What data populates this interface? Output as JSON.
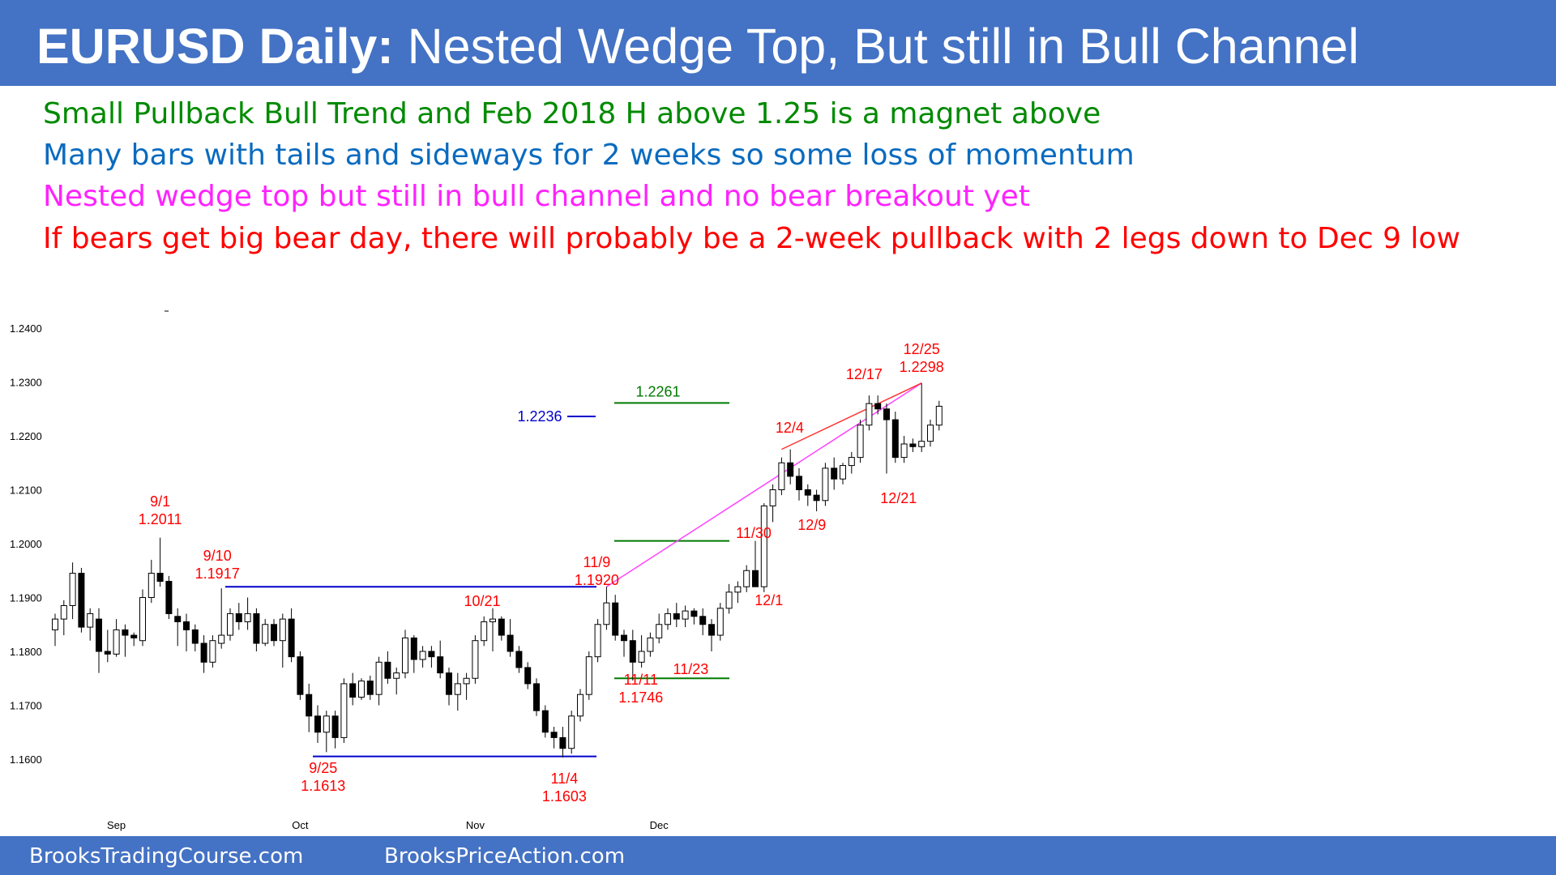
{
  "header": {
    "title_bold": "EURUSD Daily:",
    "title_rest": " Nested Wedge Top, But still in Bull Channel"
  },
  "notes": [
    {
      "text": "Small Pullback Bull Trend and Feb 2018 H above 1.25 is a magnet above",
      "color": "#008a00"
    },
    {
      "text": "Many bars with tails and sideways for 2 weeks so some loss of momentum",
      "color": "#0a6bbf"
    },
    {
      "text": "Nested wedge top but still in bull channel and no bear breakout yet",
      "color": "#ff22ff"
    },
    {
      "text": "If bears get big bear day, there will probably be a 2-week pullback with 2 legs down to Dec 9 low",
      "color": "#ff0000"
    }
  ],
  "footer": {
    "left": "BrooksTradingCourse.com",
    "right": "BrooksPriceAction.com"
  },
  "colors": {
    "bar_fill": "#4472c4",
    "bull_candle": "#ffffff",
    "bear_candle": "#000000",
    "annot_red": "#ff0000",
    "annot_blue": "#0000cc",
    "annot_green": "#007a00",
    "wedge_pink": "#ff44ff"
  },
  "chart_data": {
    "type": "candlestick",
    "title": "EURUSD Daily",
    "ylim": [
      1.158,
      1.24
    ],
    "y_ticks": [
      "1.2400",
      "1.2300",
      "1.2200",
      "1.2100",
      "1.2000",
      "1.1900",
      "1.1800",
      "1.1700",
      "1.1600"
    ],
    "x_month_labels": [
      {
        "label": "Sep",
        "index": 7
      },
      {
        "label": "Oct",
        "index": 28
      },
      {
        "label": "Nov",
        "index": 48
      },
      {
        "label": "Dec",
        "index": 69
      }
    ],
    "candles_ohlc": [
      [
        1.184,
        1.187,
        1.181,
        1.186
      ],
      [
        1.186,
        1.1895,
        1.183,
        1.1885
      ],
      [
        1.1885,
        1.1965,
        1.186,
        1.1945
      ],
      [
        1.1945,
        1.1955,
        1.1835,
        1.1845
      ],
      [
        1.1845,
        1.188,
        1.182,
        1.187
      ],
      [
        1.186,
        1.188,
        1.176,
        1.18
      ],
      [
        1.18,
        1.184,
        1.178,
        1.1795
      ],
      [
        1.1795,
        1.186,
        1.179,
        1.184
      ],
      [
        1.184,
        1.185,
        1.179,
        1.183
      ],
      [
        1.183,
        1.1835,
        1.181,
        1.1825
      ],
      [
        1.182,
        1.1915,
        1.181,
        1.19
      ],
      [
        1.19,
        1.197,
        1.189,
        1.1945
      ],
      [
        1.1945,
        1.2011,
        1.192,
        1.193
      ],
      [
        1.193,
        1.194,
        1.186,
        1.187
      ],
      [
        1.1865,
        1.188,
        1.181,
        1.1855
      ],
      [
        1.1855,
        1.187,
        1.18,
        1.184
      ],
      [
        1.184,
        1.185,
        1.18,
        1.1815
      ],
      [
        1.1815,
        1.183,
        1.176,
        1.178
      ],
      [
        1.178,
        1.183,
        1.177,
        1.182
      ],
      [
        1.1815,
        1.1917,
        1.1805,
        1.183
      ],
      [
        1.183,
        1.188,
        1.182,
        1.187
      ],
      [
        1.187,
        1.189,
        1.184,
        1.1855
      ],
      [
        1.1855,
        1.19,
        1.184,
        1.187
      ],
      [
        1.187,
        1.188,
        1.18,
        1.1815
      ],
      [
        1.1815,
        1.186,
        1.181,
        1.185
      ],
      [
        1.185,
        1.186,
        1.181,
        1.182
      ],
      [
        1.182,
        1.187,
        1.177,
        1.186
      ],
      [
        1.186,
        1.188,
        1.178,
        1.179
      ],
      [
        1.179,
        1.18,
        1.171,
        1.172
      ],
      [
        1.172,
        1.174,
        1.165,
        1.168
      ],
      [
        1.168,
        1.17,
        1.163,
        1.165
      ],
      [
        1.165,
        1.169,
        1.1613,
        1.168
      ],
      [
        1.168,
        1.169,
        1.162,
        1.164
      ],
      [
        1.164,
        1.175,
        1.163,
        1.174
      ],
      [
        1.174,
        1.176,
        1.17,
        1.1715
      ],
      [
        1.1715,
        1.175,
        1.171,
        1.1745
      ],
      [
        1.1745,
        1.1755,
        1.171,
        1.172
      ],
      [
        1.172,
        1.179,
        1.17,
        1.178
      ],
      [
        1.178,
        1.18,
        1.174,
        1.175
      ],
      [
        1.175,
        1.177,
        1.172,
        1.176
      ],
      [
        1.176,
        1.184,
        1.175,
        1.1825
      ],
      [
        1.1825,
        1.183,
        1.176,
        1.1785
      ],
      [
        1.1785,
        1.181,
        1.177,
        1.18
      ],
      [
        1.18,
        1.181,
        1.177,
        1.179
      ],
      [
        1.179,
        1.182,
        1.175,
        1.176
      ],
      [
        1.176,
        1.177,
        1.17,
        1.172
      ],
      [
        1.172,
        1.176,
        1.169,
        1.174
      ],
      [
        1.174,
        1.176,
        1.171,
        1.175
      ],
      [
        1.175,
        1.183,
        1.174,
        1.182
      ],
      [
        1.182,
        1.1865,
        1.181,
        1.1855
      ],
      [
        1.1855,
        1.188,
        1.18,
        1.186
      ],
      [
        1.186,
        1.1865,
        1.182,
        1.183
      ],
      [
        1.183,
        1.186,
        1.179,
        1.18
      ],
      [
        1.18,
        1.181,
        1.176,
        1.177
      ],
      [
        1.177,
        1.178,
        1.173,
        1.174
      ],
      [
        1.174,
        1.175,
        1.168,
        1.169
      ],
      [
        1.169,
        1.17,
        1.164,
        1.165
      ],
      [
        1.165,
        1.166,
        1.162,
        1.164
      ],
      [
        1.164,
        1.166,
        1.1603,
        1.162
      ],
      [
        1.162,
        1.169,
        1.161,
        1.168
      ],
      [
        1.168,
        1.173,
        1.167,
        1.172
      ],
      [
        1.172,
        1.18,
        1.171,
        1.179
      ],
      [
        1.179,
        1.186,
        1.178,
        1.185
      ],
      [
        1.185,
        1.192,
        1.184,
        1.189
      ],
      [
        1.189,
        1.1905,
        1.182,
        1.183
      ],
      [
        1.183,
        1.184,
        1.179,
        1.182
      ],
      [
        1.182,
        1.184,
        1.1746,
        1.178
      ],
      [
        1.178,
        1.183,
        1.177,
        1.18
      ],
      [
        1.18,
        1.1835,
        1.179,
        1.1825
      ],
      [
        1.1825,
        1.187,
        1.1815,
        1.185
      ]
    ],
    "candles_ohlc_cont": [
      [
        1.185,
        1.188,
        1.184,
        1.187
      ],
      [
        1.187,
        1.189,
        1.1845,
        1.186
      ],
      [
        1.186,
        1.1885,
        1.1845,
        1.1875
      ],
      [
        1.1875,
        1.188,
        1.185,
        1.1865
      ],
      [
        1.1865,
        1.188,
        1.183,
        1.185
      ],
      [
        1.185,
        1.186,
        1.18,
        1.183
      ],
      [
        1.183,
        1.189,
        1.182,
        1.188
      ],
      [
        1.188,
        1.1925,
        1.187,
        1.191
      ],
      [
        1.191,
        1.193,
        1.189,
        1.192
      ],
      [
        1.192,
        1.196,
        1.191,
        1.195
      ],
      [
        1.195,
        1.2005,
        1.194,
        1.192
      ],
      [
        1.192,
        1.2075,
        1.191,
        1.207
      ],
      [
        1.207,
        1.211,
        1.204,
        1.21
      ],
      [
        1.21,
        1.216,
        1.209,
        1.215
      ],
      [
        1.215,
        1.2175,
        1.211,
        1.2125
      ],
      [
        1.2125,
        1.214,
        1.208,
        1.21
      ],
      [
        1.21,
        1.211,
        1.207,
        1.209
      ],
      [
        1.209,
        1.21,
        1.206,
        1.208
      ],
      [
        1.208,
        1.215,
        1.207,
        1.214
      ],
      [
        1.214,
        1.216,
        1.21,
        1.212
      ],
      [
        1.212,
        1.215,
        1.211,
        1.2145
      ],
      [
        1.2145,
        1.217,
        1.213,
        1.216
      ],
      [
        1.216,
        1.223,
        1.215,
        1.222
      ],
      [
        1.222,
        1.2275,
        1.221,
        1.226
      ],
      [
        1.226,
        1.2275,
        1.224,
        1.225
      ],
      [
        1.225,
        1.226,
        1.213,
        1.223
      ],
      [
        1.223,
        1.2245,
        1.215,
        1.216
      ],
      [
        1.216,
        1.22,
        1.215,
        1.2185
      ],
      [
        1.2185,
        1.2195,
        1.217,
        1.218
      ],
      [
        1.218,
        1.2298,
        1.217,
        1.219
      ],
      [
        1.219,
        1.223,
        1.218,
        1.222
      ],
      [
        1.222,
        1.2265,
        1.221,
        1.2255
      ]
    ],
    "annotations": [
      {
        "label": "9/1",
        "value": "1.2011",
        "bar": 12
      },
      {
        "label": "9/10",
        "value": "1.1917",
        "bar": 19
      },
      {
        "label": "9/25",
        "value": "1.1613",
        "bar": 31
      },
      {
        "label": "10/21",
        "value": "",
        "bar": 50
      },
      {
        "label": "11/4",
        "value": "1.1603",
        "bar": 58
      },
      {
        "label": "11/9",
        "value": "1.1920",
        "bar": 63
      },
      {
        "label": "11/11",
        "value": "1.1746",
        "bar": 66
      },
      {
        "label": "11/23",
        "value": "",
        "bar": 73
      },
      {
        "label": "11/30",
        "value": "",
        "bar": 80
      },
      {
        "label": "12/1",
        "value": "",
        "bar": 81
      },
      {
        "label": "12/4",
        "value": "",
        "bar": 83
      },
      {
        "label": "12/9",
        "value": "",
        "bar": 86
      },
      {
        "label": "12/17",
        "value": "",
        "bar": 93
      },
      {
        "label": "12/21",
        "value": "",
        "bar": 96
      },
      {
        "label": "12/25",
        "value": "1.2298",
        "bar": 99
      }
    ],
    "levels": [
      {
        "label": "1.2236",
        "price": 1.2236,
        "color": "blue"
      },
      {
        "label": "1.2261",
        "price": 1.2261,
        "color": "green"
      },
      {
        "label": "",
        "price": 1.2005,
        "color": "green"
      },
      {
        "label": "",
        "price": 1.175,
        "color": "green"
      },
      {
        "label": "",
        "price": 1.192,
        "color": "blue"
      },
      {
        "label": "",
        "price": 1.1605,
        "color": "blue"
      }
    ]
  }
}
